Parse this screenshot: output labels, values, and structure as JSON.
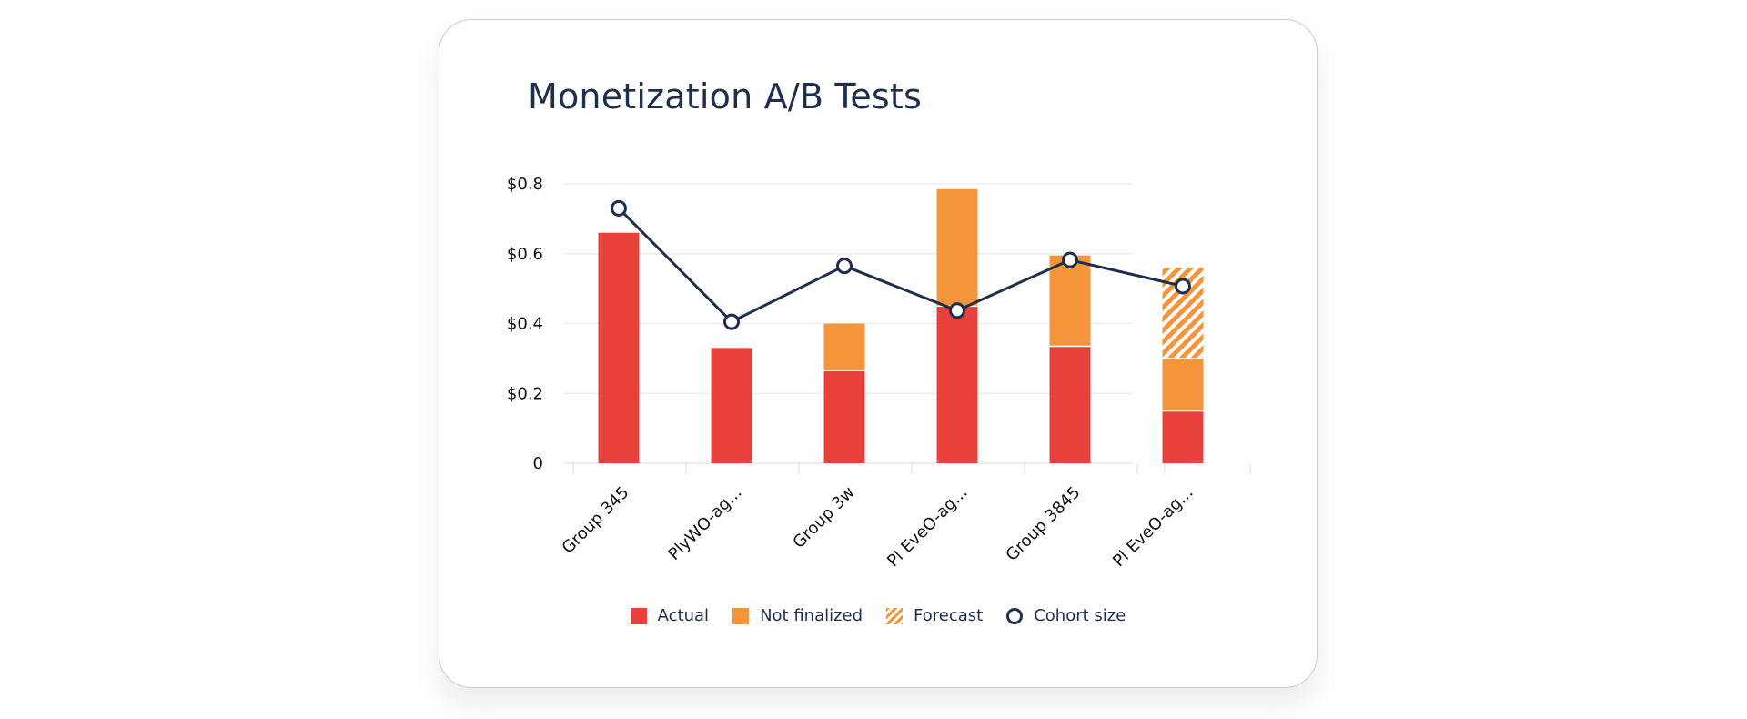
{
  "card": {
    "title": "Monetization A/B Tests"
  },
  "chart_data": {
    "type": "bar",
    "stacked": true,
    "title": "Monetization A/B Tests",
    "xlabel": "",
    "ylabel": "",
    "ylim": [
      0,
      0.8
    ],
    "yticks": [
      {
        "value": 0,
        "label": "0"
      },
      {
        "value": 0.2,
        "label": "$0.2"
      },
      {
        "value": 0.4,
        "label": "$0.4"
      },
      {
        "value": 0.6,
        "label": "$0.6"
      },
      {
        "value": 0.8,
        "label": "$0.8"
      }
    ],
    "categories": [
      "Group 345",
      "PlyWO-ag...",
      "Group 3w",
      "Pl EveO-ag...",
      "Group 3845",
      "Pl EveO-ag..."
    ],
    "series": [
      {
        "name": "Actual",
        "kind": "bar",
        "color": "#e8403a",
        "values": [
          0.66,
          0.33,
          0.265,
          0.45,
          0.335,
          0.15
        ]
      },
      {
        "name": "Not finalized",
        "kind": "bar",
        "color": "#f4953b",
        "values": [
          0,
          0,
          0.135,
          0.335,
          0.26,
          0.15
        ]
      },
      {
        "name": "Forecast",
        "kind": "bar-hatched",
        "color": "#f4953b",
        "values": [
          0,
          0,
          0,
          0,
          0,
          0.26
        ]
      },
      {
        "name": "Cohort size",
        "kind": "line",
        "color": "#1e2f4d",
        "values": [
          0.73,
          0.405,
          0.565,
          0.437,
          0.582,
          0.507
        ]
      }
    ],
    "grid": true,
    "legend_position": "bottom"
  }
}
